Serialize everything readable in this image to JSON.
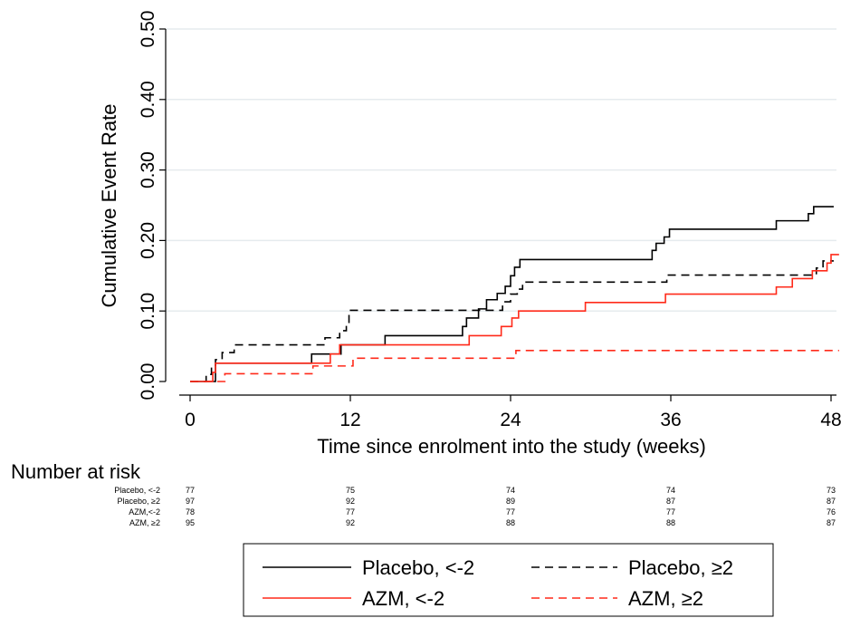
{
  "chart_data": {
    "type": "line",
    "step": true,
    "xlabel": "Time since enrolment into the study (weeks)",
    "ylabel": "Cumulative Event Rate",
    "xlim": [
      0,
      48
    ],
    "ylim": [
      0,
      0.5
    ],
    "xticks": [
      0,
      12,
      24,
      36,
      48
    ],
    "xtick_labels": [
      "0",
      "12",
      "24",
      "36",
      "48"
    ],
    "yticks": [
      0,
      0.1,
      0.2,
      0.3,
      0.4,
      0.5
    ],
    "ytick_labels": [
      "0.00",
      "0.10",
      "0.20",
      "0.30",
      "0.40",
      "0.50"
    ],
    "grid": "horizontal",
    "series": [
      {
        "name": "Placebo, <-2",
        "color": "#000000",
        "dash": "solid",
        "points": [
          [
            0,
            0
          ],
          [
            1.9,
            0
          ],
          [
            1.9,
            0.026
          ],
          [
            9.1,
            0.026
          ],
          [
            9.1,
            0.039
          ],
          [
            11.3,
            0.039
          ],
          [
            11.3,
            0.052
          ],
          [
            14.6,
            0.052
          ],
          [
            14.6,
            0.065
          ],
          [
            20.4,
            0.065
          ],
          [
            20.4,
            0.078
          ],
          [
            20.7,
            0.078
          ],
          [
            20.7,
            0.09
          ],
          [
            21.6,
            0.09
          ],
          [
            21.6,
            0.103
          ],
          [
            22.2,
            0.103
          ],
          [
            22.2,
            0.116
          ],
          [
            23.0,
            0.116
          ],
          [
            23.0,
            0.125
          ],
          [
            23.6,
            0.125
          ],
          [
            23.6,
            0.135
          ],
          [
            24.0,
            0.135
          ],
          [
            24.0,
            0.15
          ],
          [
            24.3,
            0.15
          ],
          [
            24.3,
            0.162
          ],
          [
            24.7,
            0.162
          ],
          [
            24.7,
            0.173
          ],
          [
            34.6,
            0.173
          ],
          [
            34.6,
            0.186
          ],
          [
            34.9,
            0.186
          ],
          [
            34.9,
            0.196
          ],
          [
            35.5,
            0.196
          ],
          [
            35.5,
            0.205
          ],
          [
            35.9,
            0.205
          ],
          [
            35.9,
            0.216
          ],
          [
            43.9,
            0.216
          ],
          [
            43.9,
            0.228
          ],
          [
            46.3,
            0.228
          ],
          [
            46.3,
            0.238
          ],
          [
            46.7,
            0.238
          ],
          [
            46.7,
            0.248
          ],
          [
            48.2,
            0.248
          ]
        ]
      },
      {
        "name": "Placebo, ≥2",
        "color": "#000000",
        "dash": "dashed",
        "points": [
          [
            0,
            0
          ],
          [
            1.2,
            0
          ],
          [
            1.2,
            0.01
          ],
          [
            1.6,
            0.01
          ],
          [
            1.6,
            0.02
          ],
          [
            1.9,
            0.02
          ],
          [
            1.9,
            0.031
          ],
          [
            2.4,
            0.031
          ],
          [
            2.4,
            0.041
          ],
          [
            3.3,
            0.041
          ],
          [
            3.3,
            0.052
          ],
          [
            10.1,
            0.052
          ],
          [
            10.1,
            0.062
          ],
          [
            11.2,
            0.062
          ],
          [
            11.2,
            0.072
          ],
          [
            11.7,
            0.072
          ],
          [
            11.7,
            0.082
          ],
          [
            11.9,
            0.082
          ],
          [
            11.9,
            0.101
          ],
          [
            23.4,
            0.101
          ],
          [
            23.4,
            0.113
          ],
          [
            24.0,
            0.113
          ],
          [
            24.0,
            0.124
          ],
          [
            24.5,
            0.124
          ],
          [
            24.5,
            0.131
          ],
          [
            24.9,
            0.131
          ],
          [
            24.9,
            0.141
          ],
          [
            35.7,
            0.141
          ],
          [
            35.7,
            0.151
          ],
          [
            46.9,
            0.151
          ],
          [
            46.9,
            0.161
          ],
          [
            47.4,
            0.161
          ],
          [
            47.4,
            0.171
          ],
          [
            48.2,
            0.171
          ]
        ]
      },
      {
        "name": "AZM, <-2",
        "color": "#ff2a1a",
        "dash": "solid",
        "points": [
          [
            0,
            0
          ],
          [
            1.7,
            0
          ],
          [
            1.7,
            0.013
          ],
          [
            1.9,
            0.013
          ],
          [
            1.9,
            0.026
          ],
          [
            10.5,
            0.026
          ],
          [
            10.5,
            0.039
          ],
          [
            11.2,
            0.039
          ],
          [
            11.2,
            0.052
          ],
          [
            20.9,
            0.052
          ],
          [
            20.9,
            0.065
          ],
          [
            23.3,
            0.065
          ],
          [
            23.3,
            0.078
          ],
          [
            24.1,
            0.078
          ],
          [
            24.1,
            0.09
          ],
          [
            24.6,
            0.09
          ],
          [
            24.6,
            0.1
          ],
          [
            29.6,
            0.1
          ],
          [
            29.6,
            0.112
          ],
          [
            35.6,
            0.112
          ],
          [
            35.6,
            0.124
          ],
          [
            43.9,
            0.124
          ],
          [
            43.9,
            0.134
          ],
          [
            45.1,
            0.134
          ],
          [
            45.1,
            0.146
          ],
          [
            46.6,
            0.146
          ],
          [
            46.6,
            0.157
          ],
          [
            47.7,
            0.157
          ],
          [
            47.7,
            0.168
          ],
          [
            48.0,
            0.168
          ],
          [
            48.0,
            0.18
          ],
          [
            48.6,
            0.18
          ]
        ]
      },
      {
        "name": "AZM, ≥2",
        "color": "#ff2a1a",
        "dash": "dashed",
        "points": [
          [
            0,
            0
          ],
          [
            2.6,
            0
          ],
          [
            2.6,
            0.011
          ],
          [
            9.2,
            0.011
          ],
          [
            9.2,
            0.022
          ],
          [
            12.2,
            0.022
          ],
          [
            12.2,
            0.033
          ],
          [
            24.4,
            0.033
          ],
          [
            24.4,
            0.044
          ],
          [
            48.6,
            0.044
          ]
        ]
      }
    ],
    "risk_table": {
      "title": "Number at risk",
      "columns": [
        0,
        12,
        24,
        36,
        48
      ],
      "rows": [
        {
          "label": "Placebo, <-2",
          "values": [
            "77",
            "75",
            "74",
            "74",
            "73"
          ]
        },
        {
          "label": "Placebo, ≥2",
          "values": [
            "97",
            "92",
            "89",
            "87",
            "87"
          ]
        },
        {
          "label": "AZM,<-2",
          "values": [
            "78",
            "77",
            "77",
            "77",
            "76"
          ]
        },
        {
          "label": "AZM, ≥2",
          "values": [
            "95",
            "92",
            "88",
            "88",
            "87"
          ]
        }
      ]
    },
    "legend": {
      "placement": "bottom",
      "entries": [
        "Placebo, <-2",
        "Placebo, ≥2",
        "AZM, <-2",
        "AZM, ≥2"
      ]
    }
  }
}
